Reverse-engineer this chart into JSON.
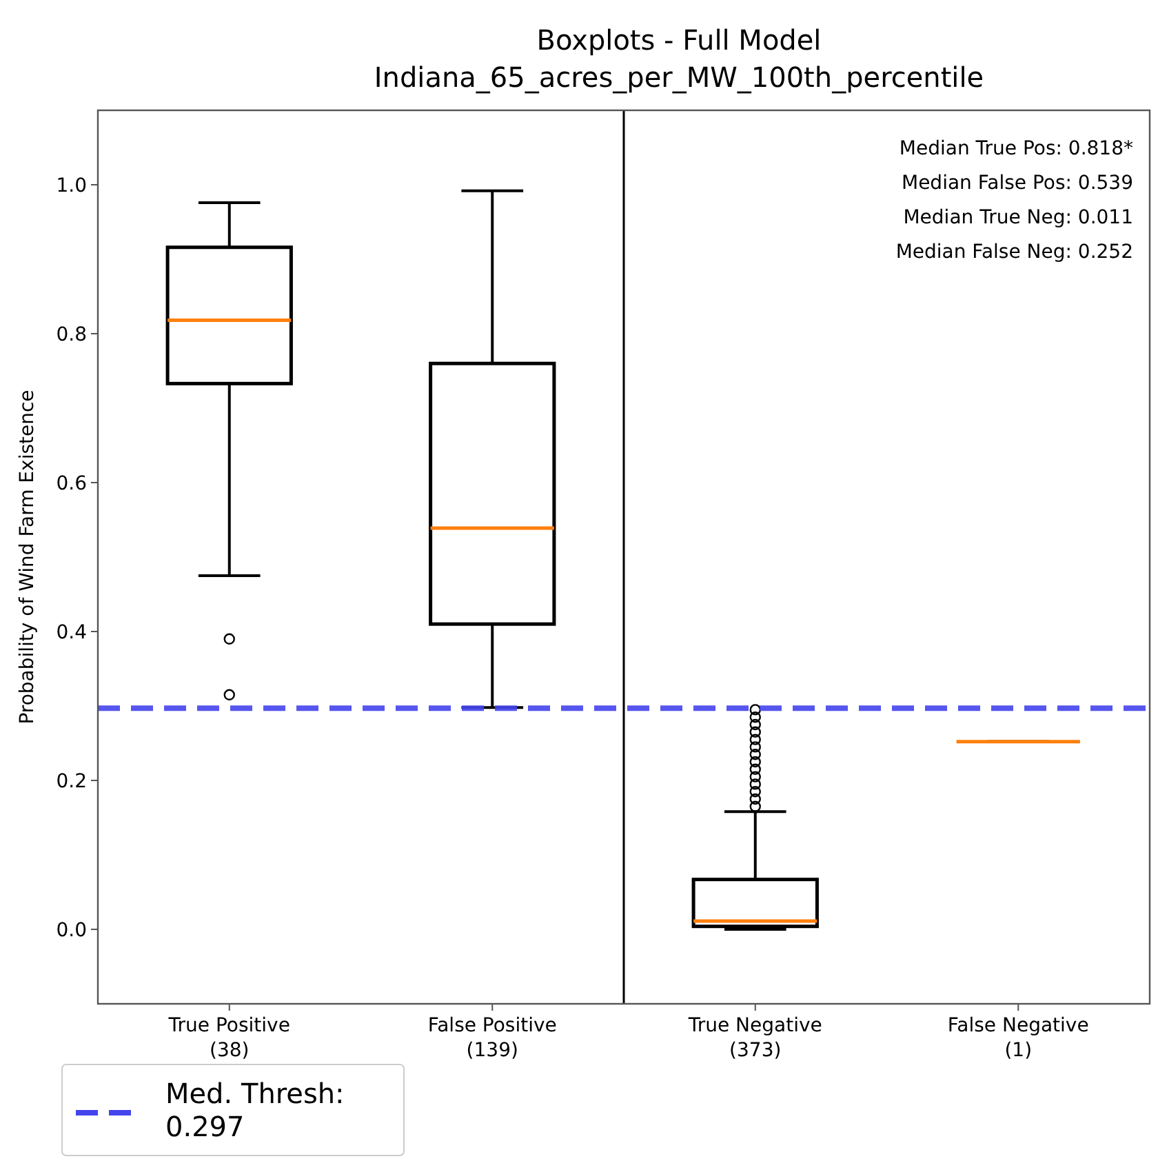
{
  "chart_data": {
    "type": "box",
    "title": "Boxplots - Full Model",
    "subtitle": "Indiana_65_acres_per_MW_100th_percentile",
    "ylabel": "Probability of Wind Farm Existence",
    "categories": [
      "True Positive\n(38)",
      "False Positive\n(139)",
      "True Negative\n(373)",
      "False Negative\n(1)"
    ],
    "boxes": [
      {
        "low": 0.475,
        "q1": 0.733,
        "median": 0.818,
        "q3": 0.916,
        "high": 0.976,
        "outliers": [
          0.39,
          0.315
        ]
      },
      {
        "low": 0.298,
        "q1": 0.41,
        "median": 0.539,
        "q3": 0.76,
        "high": 0.992
      },
      {
        "low": 0.0,
        "q1": 0.004,
        "median": 0.011,
        "q3": 0.067,
        "high": 0.158,
        "outliers": [
          0.165,
          0.175,
          0.185,
          0.195,
          0.205,
          0.215,
          0.225,
          0.235,
          0.245,
          0.255,
          0.265,
          0.275,
          0.285,
          0.295
        ]
      },
      {
        "low": 0.252,
        "q1": 0.252,
        "median": 0.252,
        "q3": 0.252,
        "high": 0.252
      }
    ],
    "ylim": [
      -0.1,
      1.1
    ],
    "yticks": [
      {
        "value": 0.0,
        "label": "0.0"
      },
      0.2,
      0.4,
      0.6,
      0.8,
      {
        "value": 1.0,
        "label": "1.0"
      }
    ],
    "ref_lines": [
      {
        "axis": "y",
        "value": 0.297,
        "label": "Med. Thresh:\n0.297",
        "color": "#4444ee",
        "line_style": "dashed"
      }
    ],
    "annotations": [
      "Median True Pos: 0.818*",
      "Median False Pos: 0.539",
      "Median True Neg: 0.011",
      "Median False Neg: 0.252"
    ],
    "legend": "bottom left",
    "grid": false
  }
}
